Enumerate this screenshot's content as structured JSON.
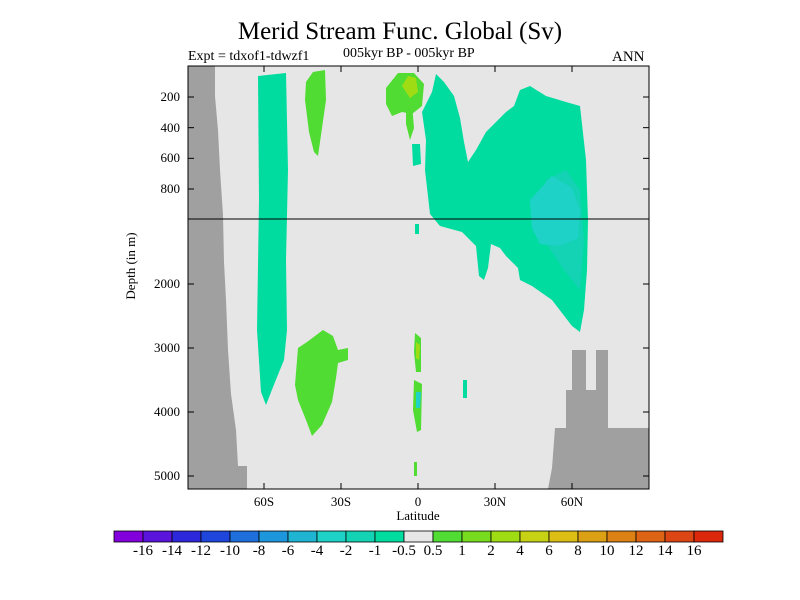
{
  "chart_data": {
    "type": "heatmap",
    "title": "Merid Stream Func. Global (Sv)",
    "experiment": "Expt = tdxof1-tdwzf1",
    "period": "005kyr BP - 005kyr BP",
    "season": "ANN",
    "xlabel": "Latitude",
    "ylabel": "Depth (in m)",
    "x_ticks": [
      {
        "value": -60,
        "label": "60S"
      },
      {
        "value": -30,
        "label": "30S"
      },
      {
        "value": 0,
        "label": "0"
      },
      {
        "value": 30,
        "label": "30N"
      },
      {
        "value": 60,
        "label": "60N"
      }
    ],
    "y_ticks_upper": [
      200,
      400,
      600,
      800
    ],
    "y_ticks_lower": [
      2000,
      3000,
      4000,
      5000
    ],
    "colorbar": {
      "labels": [
        "-16",
        "-14",
        "-12",
        "-10",
        "-8",
        "-6",
        "-4",
        "-2",
        "-1",
        "-0.5",
        "0.5",
        "1",
        "2",
        "4",
        "6",
        "8",
        "10",
        "12",
        "14",
        "16"
      ],
      "colors": [
        "#8200dc",
        "#5a14dc",
        "#2e28dc",
        "#1e46dc",
        "#1e6edc",
        "#1e96dc",
        "#1eb4d2",
        "#1ed2c8",
        "#14d2b4",
        "#00dca0",
        "#e6e6e6",
        "#50dc32",
        "#78dc1e",
        "#a0dc14",
        "#c8d214",
        "#dcbe14",
        "#dca014",
        "#dc8214",
        "#dc6414",
        "#dc4614",
        "#dc280a"
      ]
    },
    "colors": {
      "background": "#e6e6e6",
      "land": "#a0a0a0",
      "neg_weak": "#00dca0",
      "neg_moderate": "#14d2b4",
      "neg_mid": "#1ed2c8",
      "pos_weak": "#50dc32",
      "pos_moderate": "#78dc1e",
      "pos_mid": "#a0dc14"
    }
  }
}
